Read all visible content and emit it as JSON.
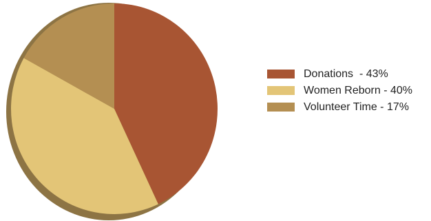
{
  "chart_data": {
    "type": "pie",
    "title": "",
    "slices": [
      {
        "label": "Donations",
        "value": 43,
        "color": "#a85533",
        "legend_text": "Donations  - 43%"
      },
      {
        "label": "Women Reborn",
        "value": 40,
        "color": "#e3c577",
        "legend_text": "Women Reborn - 40%"
      },
      {
        "label": "Volunteer Time",
        "value": 17,
        "color": "#b48f52",
        "legend_text": "Volunteer Time - 17%"
      }
    ],
    "start_angle_deg": 0,
    "direction": "clockwise",
    "legend_position": "right",
    "style": "3d-shadow"
  }
}
